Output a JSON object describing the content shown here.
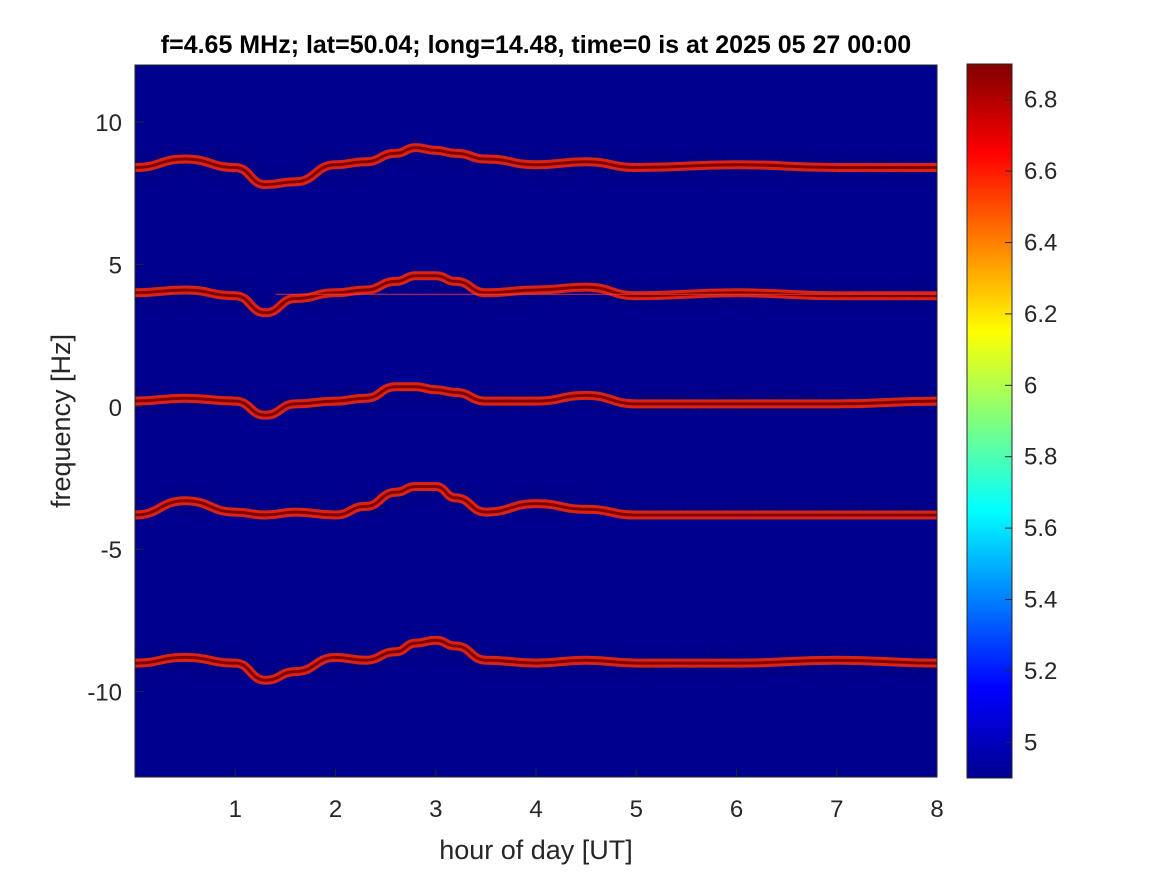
{
  "chart_data": {
    "type": "heatmap",
    "title": "f=4.65 MHz;  lat=50.04; long=14.48, time=0 is at 2025 05 27 00:00",
    "xlabel": "hour of day [UT]",
    "ylabel": "frequency [Hz]",
    "xlim": [
      0,
      8
    ],
    "ylim": [
      -13,
      12
    ],
    "xticks": [
      1,
      2,
      3,
      4,
      5,
      6,
      7,
      8
    ],
    "yticks": [
      10,
      5,
      0,
      -5,
      -10
    ],
    "colorbar": {
      "range": [
        4.9,
        6.9
      ],
      "ticks": [
        6.8,
        6.6,
        6.4,
        6.2,
        6,
        5.8,
        5.6,
        5.4,
        5.2,
        5
      ],
      "colormap": "jet"
    },
    "background_color": "#00008f",
    "bands": [
      {
        "name": "",
        "x": [
          0,
          0.5,
          1,
          1.3,
          1.6,
          2,
          2.3,
          2.6,
          2.8,
          3,
          3.2,
          3.5,
          4,
          4.5,
          5,
          6,
          7,
          8
        ],
        "y": [
          8.4,
          8.7,
          8.4,
          7.8,
          7.9,
          8.5,
          8.6,
          8.9,
          9.1,
          9,
          8.9,
          8.7,
          8.5,
          8.6,
          8.4,
          8.5,
          8.4,
          8.4
        ]
      },
      {
        "name": "",
        "x": [
          0,
          0.5,
          1,
          1.3,
          1.6,
          2,
          2.3,
          2.6,
          2.8,
          3,
          3.2,
          3.5,
          4,
          4.5,
          5,
          6,
          7,
          8
        ],
        "y": [
          4,
          4.1,
          3.9,
          3.3,
          3.8,
          4,
          4.1,
          4.4,
          4.6,
          4.6,
          4.4,
          4,
          4.1,
          4.2,
          3.9,
          4,
          3.9,
          3.9
        ]
      },
      {
        "name": "",
        "x": [
          0,
          0.5,
          1,
          1.3,
          1.6,
          2,
          2.3,
          2.6,
          2.8,
          3,
          3.2,
          3.5,
          4,
          4.5,
          5,
          6,
          7,
          8
        ],
        "y": [
          0.2,
          0.3,
          0.2,
          -0.3,
          0.1,
          0.2,
          0.3,
          0.7,
          0.7,
          0.6,
          0.5,
          0.2,
          0.2,
          0.4,
          0.1,
          0.1,
          0.1,
          0.2
        ]
      },
      {
        "name": "",
        "x": [
          0,
          0.5,
          1,
          1.3,
          1.6,
          2,
          2.3,
          2.6,
          2.8,
          3,
          3.2,
          3.5,
          4,
          4.5,
          5,
          6,
          7,
          8
        ],
        "y": [
          -3.8,
          -3.3,
          -3.7,
          -3.8,
          -3.7,
          -3.8,
          -3.5,
          -3.0,
          -2.8,
          -2.8,
          -3.2,
          -3.7,
          -3.4,
          -3.6,
          -3.8,
          -3.8,
          -3.8,
          -3.8
        ]
      },
      {
        "name": "",
        "x": [
          0,
          0.5,
          1,
          1.3,
          1.6,
          2,
          2.3,
          2.6,
          2.8,
          3,
          3.2,
          3.5,
          4,
          4.5,
          5,
          6,
          7,
          8
        ],
        "y": [
          -9.0,
          -8.8,
          -9.0,
          -9.6,
          -9.3,
          -8.8,
          -8.9,
          -8.6,
          -8.3,
          -8.2,
          -8.4,
          -8.9,
          -9.0,
          -8.9,
          -9.0,
          -9.0,
          -8.9,
          -9.0
        ]
      }
    ],
    "carrier_line": {
      "y": 3.95,
      "x": [
        1.4,
        8
      ]
    }
  }
}
